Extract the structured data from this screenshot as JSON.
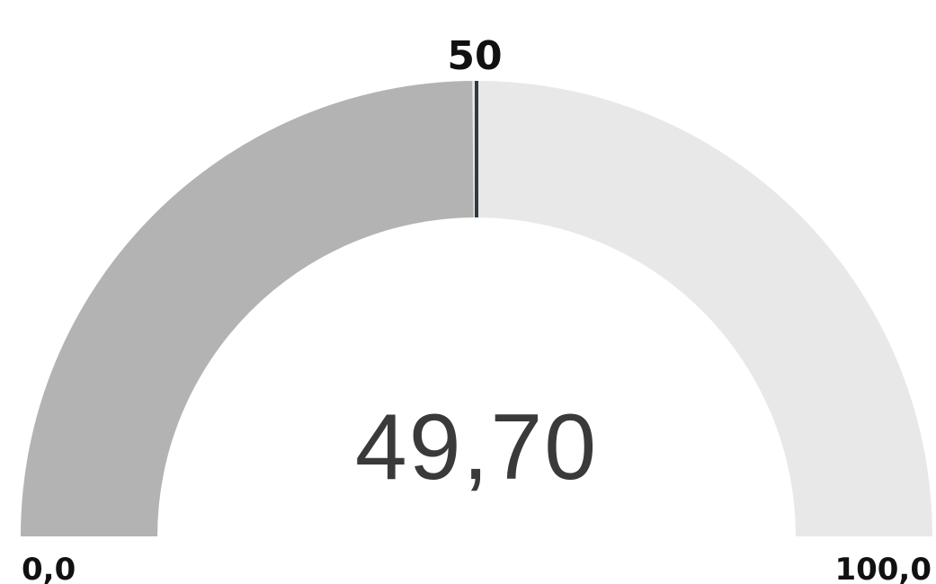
{
  "chart_data": {
    "type": "gauge",
    "value": 49.7,
    "value_label": "49,70",
    "target": 50,
    "target_label": "50",
    "min": 0,
    "max": 100,
    "min_label": "0,0",
    "max_label": "100,0",
    "colors": {
      "filled": "#b3b3b3",
      "track": "#e8e8e8",
      "target_marker": "#2f3b3f",
      "value_text": "#3a3a3a",
      "label_text": "#111111"
    }
  }
}
